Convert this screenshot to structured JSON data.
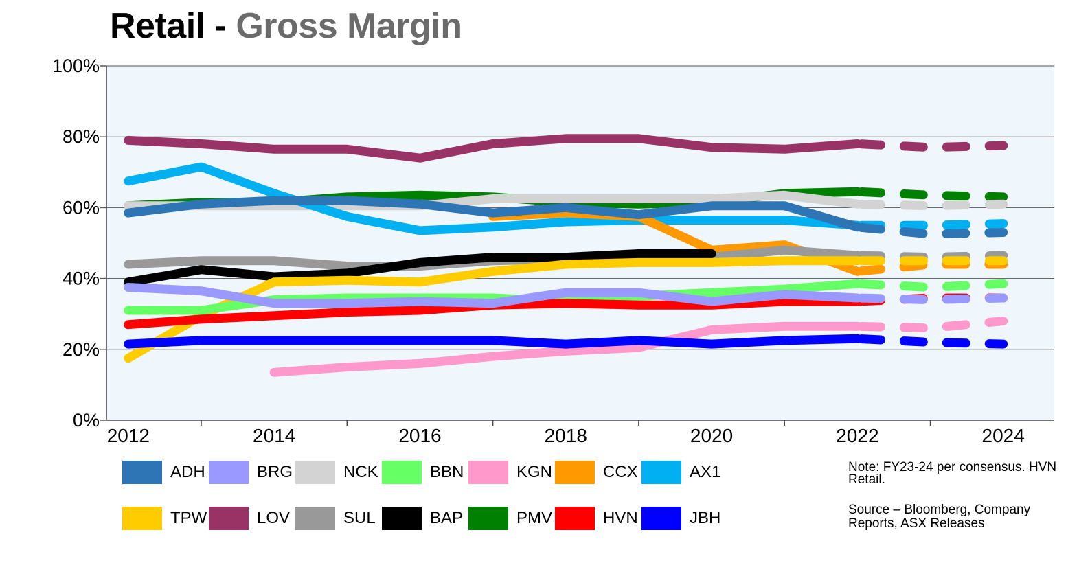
{
  "title": {
    "main": "Retail - ",
    "sub": "Gross Margin"
  },
  "note": "Note: FY23-24 per consensus. HVN Retail.",
  "source": "Source – Bloomberg, Company Reports, ASX Releases",
  "chart_data": {
    "type": "line",
    "title": "Retail - Gross Margin",
    "xlabel": "",
    "ylabel": "",
    "ylim": [
      0,
      100
    ],
    "xlim": [
      2011.7,
      2024.7
    ],
    "y_ticks": [
      "0%",
      "20%",
      "40%",
      "60%",
      "80%",
      "100%"
    ],
    "x_ticks": [
      "2012",
      "2014",
      "2016",
      "2018",
      "2020",
      "2022",
      "2024"
    ],
    "grid": true,
    "legend_position": "bottom",
    "forecast_note": "FY23-24 dashed",
    "series": [
      {
        "name": "ADH",
        "color": "#2e75b6",
        "x": [
          2012,
          2013,
          2014,
          2015,
          2016,
          2017,
          2018,
          2019,
          2020,
          2021,
          2022,
          2023,
          2024
        ],
        "values": [
          58.5,
          61,
          62,
          62,
          61,
          58.5,
          60,
          58,
          60.5,
          60.5,
          54.5,
          52.5,
          53
        ]
      },
      {
        "name": "BRG",
        "color": "#9999ff",
        "x": [
          2012,
          2013,
          2014,
          2015,
          2016,
          2017,
          2018,
          2019,
          2020,
          2021,
          2022,
          2023,
          2024
        ],
        "values": [
          37.5,
          36.5,
          33,
          33,
          33.5,
          33,
          36,
          36,
          33.5,
          35.5,
          34.5,
          34,
          34.5
        ]
      },
      {
        "name": "NCK",
        "color": "#d3d3d3",
        "x": [
          2012,
          2013,
          2014,
          2015,
          2016,
          2017,
          2018,
          2019,
          2020,
          2021,
          2022,
          2023,
          2024
        ],
        "values": [
          60.5,
          60.5,
          60.5,
          60.5,
          60.5,
          62.5,
          62.5,
          62.5,
          62.5,
          63.5,
          61,
          60.5,
          61
        ]
      },
      {
        "name": "BBN",
        "color": "#66ff66",
        "x": [
          2012,
          2013,
          2014,
          2015,
          2016,
          2017,
          2018,
          2019,
          2020,
          2021,
          2022,
          2023,
          2024
        ],
        "values": [
          31,
          31,
          34,
          34.5,
          34.5,
          34.5,
          33.5,
          35,
          36,
          37,
          38.5,
          37.5,
          38.5
        ]
      },
      {
        "name": "KGN",
        "color": "#ff99cc",
        "x": [
          2014,
          2015,
          2016,
          2017,
          2018,
          2019,
          2020,
          2021,
          2022,
          2023,
          2024
        ],
        "values": [
          13.5,
          15,
          16,
          18,
          19.5,
          20.5,
          25.5,
          26.5,
          26.5,
          26,
          28
        ]
      },
      {
        "name": "CCX",
        "color": "#ff9900",
        "x": [
          2017,
          2018,
          2019,
          2020,
          2021,
          2022,
          2023,
          2024
        ],
        "values": [
          57.5,
          58.5,
          57.5,
          48,
          49.5,
          42,
          44,
          44
        ]
      },
      {
        "name": "AX1",
        "color": "#00b0f0",
        "x": [
          2012,
          2013,
          2014,
          2015,
          2016,
          2017,
          2018,
          2019,
          2020,
          2021,
          2022,
          2023,
          2024
        ],
        "values": [
          67.5,
          71.5,
          64,
          57.5,
          53.5,
          54.5,
          56,
          56.5,
          56.5,
          56.5,
          55,
          55,
          55.5
        ]
      },
      {
        "name": "TPW",
        "color": "#ffcc00",
        "x": [
          2012,
          2013,
          2014,
          2015,
          2016,
          2017,
          2018,
          2019,
          2020,
          2021,
          2022,
          2023,
          2024
        ],
        "values": [
          17.5,
          29.5,
          39,
          39.5,
          39,
          42,
          44,
          44.5,
          44.5,
          45,
          45,
          45,
          45
        ]
      },
      {
        "name": "LOV",
        "color": "#993366",
        "x": [
          2012,
          2013,
          2014,
          2015,
          2016,
          2017,
          2018,
          2019,
          2020,
          2021,
          2022,
          2023,
          2024
        ],
        "values": [
          79,
          78,
          76.5,
          76.5,
          74,
          78,
          79.5,
          79.5,
          77,
          76.5,
          78,
          77,
          77.5
        ]
      },
      {
        "name": "SUL",
        "color": "#999999",
        "x": [
          2012,
          2013,
          2014,
          2015,
          2016,
          2017,
          2018,
          2019,
          2020,
          2021,
          2022,
          2023,
          2024
        ],
        "values": [
          44,
          45,
          45,
          43.5,
          43.5,
          45,
          45.5,
          45.5,
          46,
          48,
          46.5,
          46,
          46.5
        ]
      },
      {
        "name": "BAP",
        "color": "#000000",
        "x": [
          2012,
          2013,
          2014,
          2015,
          2016,
          2017,
          2018,
          2019,
          2020
        ],
        "values": [
          39,
          42.5,
          40.5,
          41.5,
          44.5,
          46,
          46,
          47,
          47
        ]
      },
      {
        "name": "PMV",
        "color": "#008000",
        "x": [
          2012,
          2013,
          2014,
          2015,
          2016,
          2017,
          2018,
          2019,
          2020,
          2021,
          2022,
          2023,
          2024
        ],
        "values": [
          60.5,
          61.5,
          61.5,
          63,
          63.5,
          63,
          61.5,
          61,
          61.5,
          64,
          64.5,
          63.5,
          63
        ]
      },
      {
        "name": "HVN",
        "color": "#ff0000",
        "x": [
          2012,
          2013,
          2014,
          2015,
          2016,
          2017,
          2018,
          2019,
          2020,
          2021,
          2022,
          2023,
          2024
        ],
        "values": [
          27,
          28.5,
          29.5,
          30.5,
          31,
          32.5,
          33,
          32.5,
          32.5,
          33.5,
          33.5,
          34.5,
          34.5
        ]
      },
      {
        "name": "JBH",
        "color": "#0000ff",
        "x": [
          2012,
          2013,
          2014,
          2015,
          2016,
          2017,
          2018,
          2019,
          2020,
          2021,
          2022,
          2023,
          2024
        ],
        "values": [
          21.5,
          22.5,
          22.5,
          22.5,
          22.5,
          22.5,
          21.5,
          22.5,
          21.5,
          22.5,
          23,
          22,
          21.5
        ]
      }
    ],
    "draw_order": [
      "PMV",
      "NCK",
      "AX1",
      "CCX",
      "ADH",
      "LOV",
      "SUL",
      "BAP",
      "TPW",
      "BBN",
      "HVN",
      "BRG",
      "KGN",
      "JBH"
    ]
  },
  "legend_rows": [
    [
      "ADH",
      "BRG",
      "NCK",
      "BBN",
      "KGN",
      "CCX",
      "AX1"
    ],
    [
      "TPW",
      "LOV",
      "SUL",
      "BAP",
      "PMV",
      "HVN",
      "JBH"
    ]
  ]
}
